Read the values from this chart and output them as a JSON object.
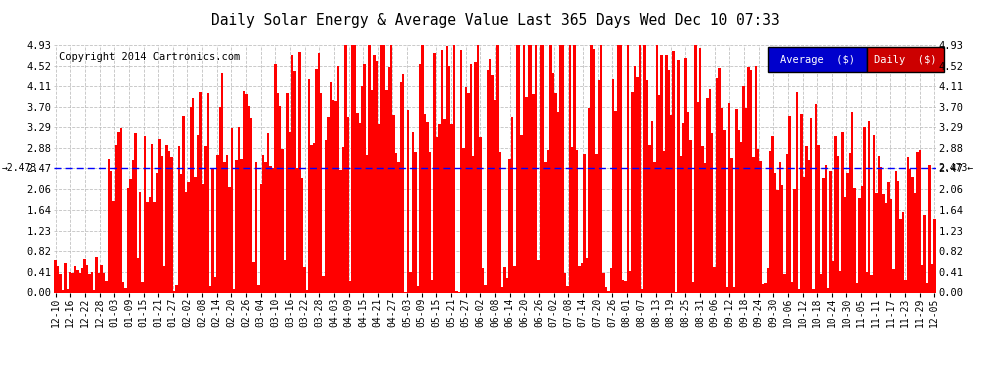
{
  "title": "Daily Solar Energy & Average Value Last 365 Days Wed Dec 10 07:33",
  "copyright": "Copyright 2014 Cartronics.com",
  "bar_color": "#FF0000",
  "avg_line_color": "#0000FF",
  "avg_value": 2.473,
  "ymax": 4.93,
  "yticks": [
    0.0,
    0.41,
    0.82,
    1.23,
    1.64,
    2.06,
    2.47,
    2.88,
    3.29,
    3.7,
    4.11,
    4.52,
    4.93
  ],
  "background_color": "#FFFFFF",
  "plot_bg_color": "#FFFFFF",
  "grid_color": "#BBBBBB",
  "legend_avg_bg": "#0000CC",
  "legend_daily_bg": "#CC0000",
  "legend_text": "Average  ($)",
  "legend_daily_text": "Daily  ($)",
  "xtick_labels": [
    "12-10",
    "12-16",
    "12-22",
    "12-28",
    "01-03",
    "01-09",
    "01-15",
    "01-21",
    "01-27",
    "02-02",
    "02-08",
    "02-14",
    "02-20",
    "02-26",
    "03-04",
    "03-10",
    "03-16",
    "03-22",
    "03-28",
    "04-03",
    "04-09",
    "04-15",
    "04-21",
    "04-27",
    "05-03",
    "05-09",
    "05-15",
    "05-21",
    "05-27",
    "06-02",
    "06-08",
    "06-14",
    "06-20",
    "06-26",
    "07-02",
    "07-08",
    "07-14",
    "07-20",
    "07-26",
    "08-01",
    "08-07",
    "08-13",
    "08-19",
    "08-25",
    "08-31",
    "09-06",
    "09-12",
    "09-18",
    "09-24",
    "09-30",
    "10-06",
    "10-12",
    "10-18",
    "10-24",
    "10-30",
    "11-05",
    "11-11",
    "11-17",
    "11-23",
    "11-29",
    "12-05"
  ],
  "num_bars": 365,
  "seed": 42
}
